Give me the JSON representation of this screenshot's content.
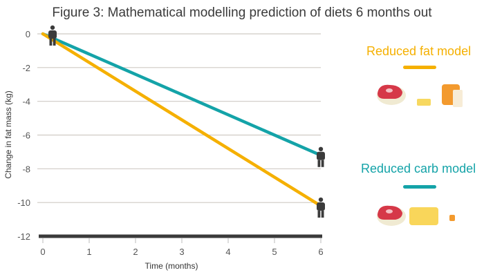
{
  "chart_data": {
    "type": "line",
    "title": "Figure 3: Mathematical modelling prediction of diets 6 months out",
    "xlabel": "Time (months)",
    "ylabel": "Change in fat mass (kg)",
    "x_ticks": [
      "0",
      "1",
      "2",
      "3",
      "4",
      "5",
      "6"
    ],
    "y_ticks": [
      "0",
      "-2",
      "-4",
      "-6",
      "-8",
      "-10",
      "-12"
    ],
    "xlim": [
      0,
      6
    ],
    "ylim": [
      -12,
      0
    ],
    "grid": true,
    "series": [
      {
        "name": "Reduced carb model",
        "color": "#14a3a8",
        "x": [
          0,
          6
        ],
        "y": [
          0,
          -7.2
        ]
      },
      {
        "name": "Reduced fat model",
        "color": "#f5b000",
        "x": [
          0,
          6
        ],
        "y": [
          0,
          -10.2
        ]
      }
    ],
    "legend": [
      {
        "label": "Reduced fat model",
        "color": "#f5b000",
        "icons": [
          "steak-icon",
          "butter-small-icon",
          "bread-icon"
        ]
      },
      {
        "label": "Reduced carb model",
        "color": "#14a3a8",
        "icons": [
          "steak-icon",
          "butter-large-icon",
          "bread-small-icon"
        ]
      }
    ],
    "legend_placement": "right"
  }
}
